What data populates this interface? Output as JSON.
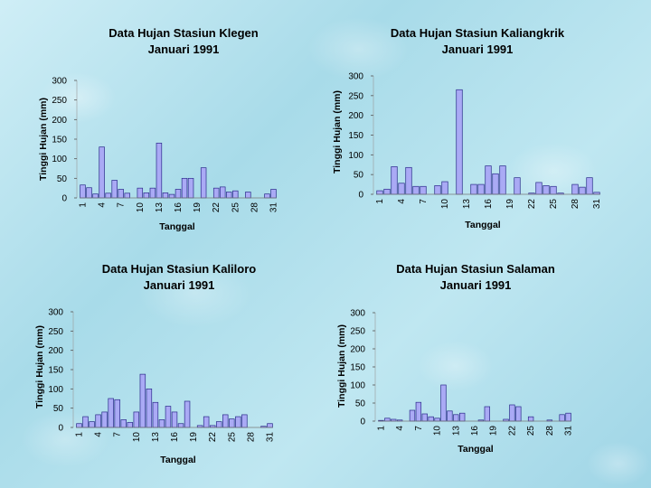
{
  "chart_data": [
    {
      "type": "bar",
      "title": "Data Hujan Stasiun Klegen",
      "subtitle": "Januari 1991",
      "xlabel": "Tanggal",
      "ylabel": "Tinggi Hujan (mm)",
      "ylim": [
        0,
        300
      ],
      "yticks": [
        "0",
        "50",
        "100",
        "150",
        "200",
        "250",
        "300"
      ],
      "xticks": [
        "1",
        "4",
        "7",
        "10",
        "13",
        "16",
        "19",
        "22",
        "25",
        "28",
        "31"
      ],
      "bar_color": "#aaaaf5",
      "x": [
        1,
        2,
        3,
        4,
        5,
        6,
        7,
        8,
        9,
        10,
        11,
        12,
        13,
        14,
        15,
        16,
        17,
        18,
        19,
        20,
        21,
        22,
        23,
        24,
        25,
        26,
        27,
        28,
        29,
        30,
        31
      ],
      "values": [
        33,
        26,
        10,
        130,
        12,
        45,
        22,
        12,
        0,
        25,
        13,
        25,
        140,
        13,
        9,
        22,
        50,
        50,
        0,
        77,
        0,
        25,
        28,
        15,
        18,
        0,
        15,
        0,
        0,
        10,
        22
      ]
    },
    {
      "type": "bar",
      "title": "Data Hujan Stasiun Kaliangkrik",
      "subtitle": "Januari 1991",
      "xlabel": "Tanggal",
      "ylabel": "Tinggi Hujan (mm)",
      "ylim": [
        0,
        300
      ],
      "yticks": [
        "0",
        "50",
        "100",
        "150",
        "200",
        "250",
        "300"
      ],
      "xticks": [
        "1",
        "4",
        "7",
        "10",
        "13",
        "16",
        "19",
        "22",
        "25",
        "28",
        "31"
      ],
      "bar_color": "#aaaaf5",
      "x": [
        1,
        2,
        3,
        4,
        5,
        6,
        7,
        8,
        9,
        10,
        11,
        12,
        13,
        14,
        15,
        16,
        17,
        18,
        19,
        20,
        21,
        22,
        23,
        24,
        25,
        26,
        27,
        28,
        29,
        30,
        31
      ],
      "values": [
        9,
        13,
        70,
        28,
        68,
        20,
        20,
        0,
        22,
        32,
        0,
        265,
        0,
        25,
        25,
        72,
        52,
        72,
        0,
        42,
        0,
        3,
        30,
        22,
        20,
        3,
        0,
        25,
        18,
        42,
        5
      ]
    },
    {
      "type": "bar",
      "title": "Data Hujan Stasiun Kaliloro",
      "subtitle": "Januari 1991",
      "xlabel": "Tanggal",
      "ylabel": "Tinggi Hujan (mm)",
      "ylim": [
        0,
        300
      ],
      "yticks": [
        "0",
        "50",
        "100",
        "150",
        "200",
        "250",
        "300"
      ],
      "xticks": [
        "1",
        "4",
        "7",
        "10",
        "13",
        "16",
        "19",
        "22",
        "25",
        "28",
        "31"
      ],
      "bar_color": "#aaaaf5",
      "x": [
        1,
        2,
        3,
        4,
        5,
        6,
        7,
        8,
        9,
        10,
        11,
        12,
        13,
        14,
        15,
        16,
        17,
        18,
        19,
        20,
        21,
        22,
        23,
        24,
        25,
        26,
        27,
        28,
        29,
        30,
        31
      ],
      "values": [
        10,
        28,
        15,
        33,
        40,
        75,
        72,
        20,
        13,
        40,
        138,
        100,
        65,
        20,
        55,
        40,
        10,
        68,
        0,
        5,
        28,
        5,
        15,
        33,
        22,
        28,
        33,
        0,
        0,
        3,
        10
      ]
    },
    {
      "type": "bar",
      "title": "Data Hujan Stasiun Salaman",
      "subtitle": "Januari 1991",
      "xlabel": "Tanggal",
      "ylabel": "Tinggi Hujan (mm)",
      "ylim": [
        0,
        300
      ],
      "yticks": [
        "0",
        "50",
        "100",
        "150",
        "200",
        "250",
        "300"
      ],
      "xticks": [
        "1",
        "4",
        "7",
        "10",
        "13",
        "16",
        "19",
        "22",
        "25",
        "28",
        "31"
      ],
      "bar_color": "#aaaaf5",
      "x": [
        1,
        2,
        3,
        4,
        5,
        6,
        7,
        8,
        9,
        10,
        11,
        12,
        13,
        14,
        15,
        16,
        17,
        18,
        19,
        20,
        21,
        22,
        23,
        24,
        25,
        26,
        27,
        28,
        29,
        30,
        31
      ],
      "values": [
        2,
        8,
        5,
        3,
        0,
        30,
        52,
        20,
        12,
        8,
        100,
        28,
        18,
        22,
        0,
        0,
        3,
        40,
        0,
        0,
        5,
        45,
        40,
        0,
        12,
        0,
        0,
        3,
        0,
        18,
        22
      ]
    }
  ]
}
